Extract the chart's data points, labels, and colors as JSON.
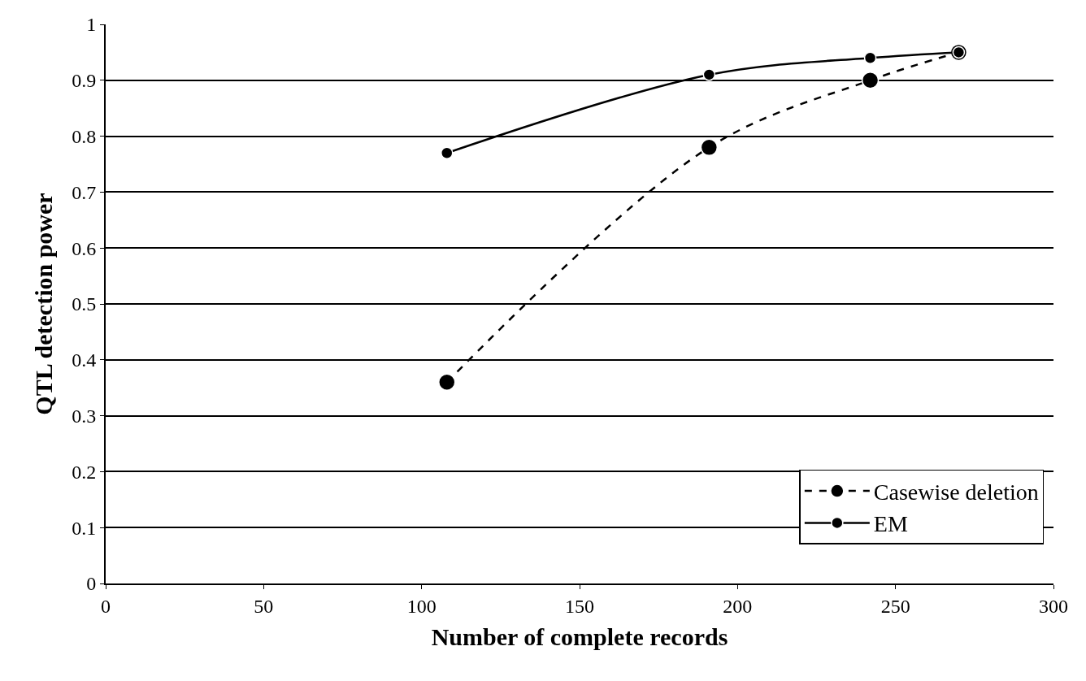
{
  "chart_data": {
    "type": "line",
    "xlabel": "Number of complete records",
    "ylabel": "QTL detection power",
    "x": [
      108,
      191,
      242,
      270
    ],
    "series": [
      {
        "name": "Casewise deletion",
        "color": "#000000",
        "values": [
          0.36,
          0.78,
          0.9,
          0.95
        ],
        "line_style": "dashed"
      },
      {
        "name": "EM",
        "color": "#000000",
        "values": [
          0.77,
          0.91,
          0.94,
          0.95
        ],
        "line_style": "solid"
      }
    ],
    "xlim": [
      0,
      300
    ],
    "xticks": [
      0,
      50,
      100,
      150,
      200,
      250,
      300
    ],
    "ylim": [
      0,
      1
    ],
    "yticks": [
      0,
      0.1,
      0.2,
      0.3,
      0.4,
      0.5,
      0.6,
      0.7,
      0.8,
      0.9,
      1
    ],
    "grid": "y",
    "legend": "bottom right",
    "marker": "circle"
  }
}
